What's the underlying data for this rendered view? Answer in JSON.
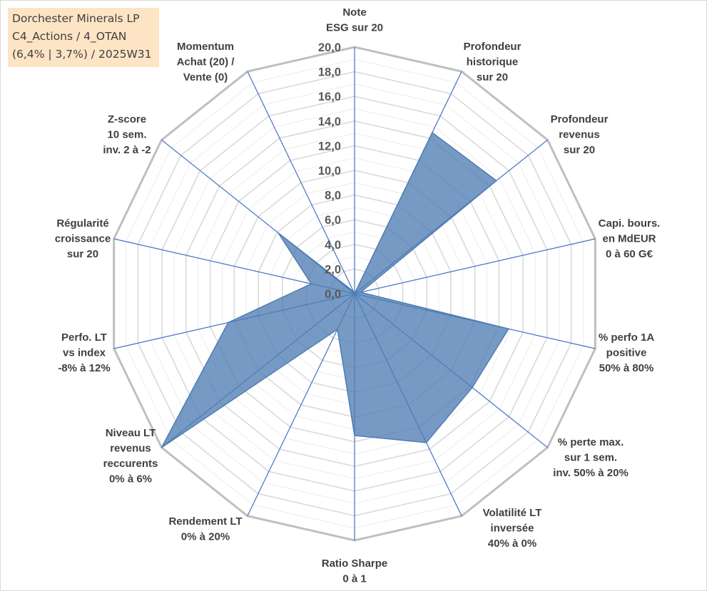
{
  "chart_data": {
    "type": "radar",
    "title_lines": [
      "Dorchester Minerals LP",
      "C4_Actions / 4_OTAN",
      "(6,4% | 3,7%) / 2025W31"
    ],
    "axes": [
      {
        "label_lines": [
          "Note",
          "ESG sur 20"
        ]
      },
      {
        "label_lines": [
          "Profondeur",
          "historique",
          "sur 20"
        ]
      },
      {
        "label_lines": [
          "Profondeur",
          "revenus",
          "sur 20"
        ]
      },
      {
        "label_lines": [
          "Capi. bours.",
          "en MdEUR",
          "0 à 60 G€"
        ]
      },
      {
        "label_lines": [
          "% perfo 1A",
          "positive",
          "50% à 80%"
        ]
      },
      {
        "label_lines": [
          "% perte max.",
          "sur 1 sem.",
          "inv. 50% à 20%"
        ]
      },
      {
        "label_lines": [
          "Volatilité LT",
          "inversée",
          "40% à 0%"
        ]
      },
      {
        "label_lines": [
          "Ratio Sharpe",
          "0 à 1"
        ]
      },
      {
        "label_lines": [
          "Rendement LT",
          "0% à 20%"
        ]
      },
      {
        "label_lines": [
          "Niveau LT",
          "revenus",
          "reccurents",
          "0% à 6%"
        ]
      },
      {
        "label_lines": [
          "Perfo. LT",
          "vs index",
          "-8% à 12%"
        ]
      },
      {
        "label_lines": [
          "Régularité",
          "croissance",
          "sur 20"
        ]
      },
      {
        "label_lines": [
          "Z-score",
          "10 sem.",
          "inv. 2 à -2"
        ]
      },
      {
        "label_lines": [
          "Momentum",
          "Achat (20) /",
          "Vente (0)"
        ]
      }
    ],
    "values": [
      0.0,
      14.5,
      14.7,
      0.5,
      12.8,
      12.2,
      13.4,
      11.5,
      3.2,
      20.0,
      10.5,
      3.6,
      7.9,
      0.2
    ],
    "rmin": 0,
    "rmax": 20,
    "tick_step": 2,
    "tick_labels": [
      "0,0",
      "2,0",
      "4,0",
      "6,0",
      "8,0",
      "10,0",
      "12,0",
      "14,0",
      "16,0",
      "18,0",
      "20,0"
    ],
    "colors": {
      "fill": "#4f7db3",
      "stroke": "#4f7db3",
      "spoke": "#4472c4",
      "ring": "#d9d9d9",
      "outer": "#bfbfbf"
    }
  }
}
